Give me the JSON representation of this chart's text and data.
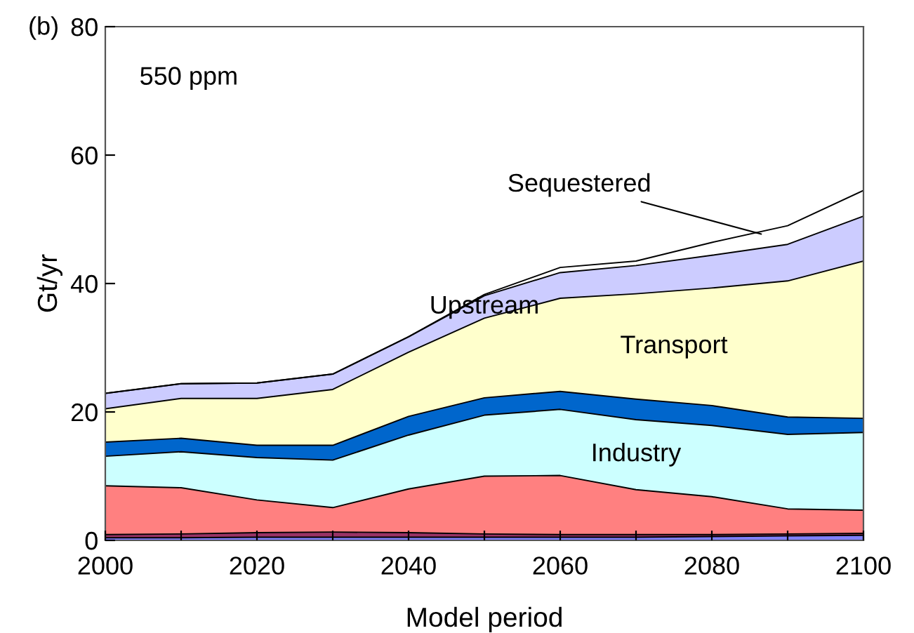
{
  "chart_data": {
    "type": "area",
    "stacked": true,
    "xlabel": "Model period",
    "ylabel": "Gt/yr",
    "annotations": [
      "(b)",
      "550 ppm"
    ],
    "x": [
      2000,
      2010,
      2020,
      2030,
      2040,
      2050,
      2060,
      2070,
      2080,
      2090,
      2100
    ],
    "series": [
      {
        "color": "#8080ff",
        "values": [
          0.4,
          0.4,
          0.5,
          0.5,
          0.5,
          0.5,
          0.5,
          0.5,
          0.6,
          0.7,
          0.8
        ]
      },
      {
        "color": "#993366",
        "values": [
          0.5,
          0.6,
          0.7,
          0.8,
          0.7,
          0.5,
          0.4,
          0.4,
          0.3,
          0.3,
          0.3
        ]
      },
      {
        "color": "#ff8080",
        "values": [
          7.6,
          7.2,
          5.1,
          3.8,
          6.8,
          9.0,
          9.2,
          7.0,
          5.9,
          3.9,
          3.6
        ]
      },
      {
        "name": "Industry",
        "color": "#ccffff",
        "values": [
          4.6,
          5.6,
          6.6,
          7.4,
          8.4,
          9.5,
          10.3,
          10.9,
          11.1,
          11.6,
          12.1
        ]
      },
      {
        "color": "#0066cc",
        "values": [
          2.2,
          2.1,
          1.9,
          2.3,
          2.9,
          2.7,
          2.8,
          3.2,
          3.1,
          2.7,
          2.2
        ]
      },
      {
        "name": "Transport",
        "color": "#ffffcc",
        "values": [
          5.2,
          6.2,
          7.3,
          8.7,
          10.0,
          12.4,
          14.5,
          16.4,
          18.3,
          21.2,
          24.5
        ]
      },
      {
        "name": "Upstream",
        "color": "#ccccff",
        "values": [
          2.4,
          2.3,
          2.4,
          2.4,
          2.4,
          3.5,
          4.0,
          4.4,
          5.1,
          5.7,
          7.0
        ]
      },
      {
        "name": "Sequestered",
        "color": "#ffffff",
        "values": [
          0,
          0,
          0,
          0,
          0,
          0.2,
          0.8,
          0.7,
          2.0,
          2.9,
          4.0
        ]
      }
    ],
    "xlim": [
      2000,
      2100
    ],
    "xticks": [
      2000,
      {
        "value": 2010,
        "label": null
      },
      2020,
      {
        "value": 2030,
        "label": null
      },
      2040,
      {
        "value": 2050,
        "label": null
      },
      2060,
      {
        "value": 2070,
        "label": null
      },
      2080,
      {
        "value": 2090,
        "label": null
      },
      2100
    ],
    "ylim": [
      0,
      80
    ],
    "yticks": [
      0,
      20,
      40,
      60,
      80
    ],
    "grid": false,
    "legend": false
  }
}
